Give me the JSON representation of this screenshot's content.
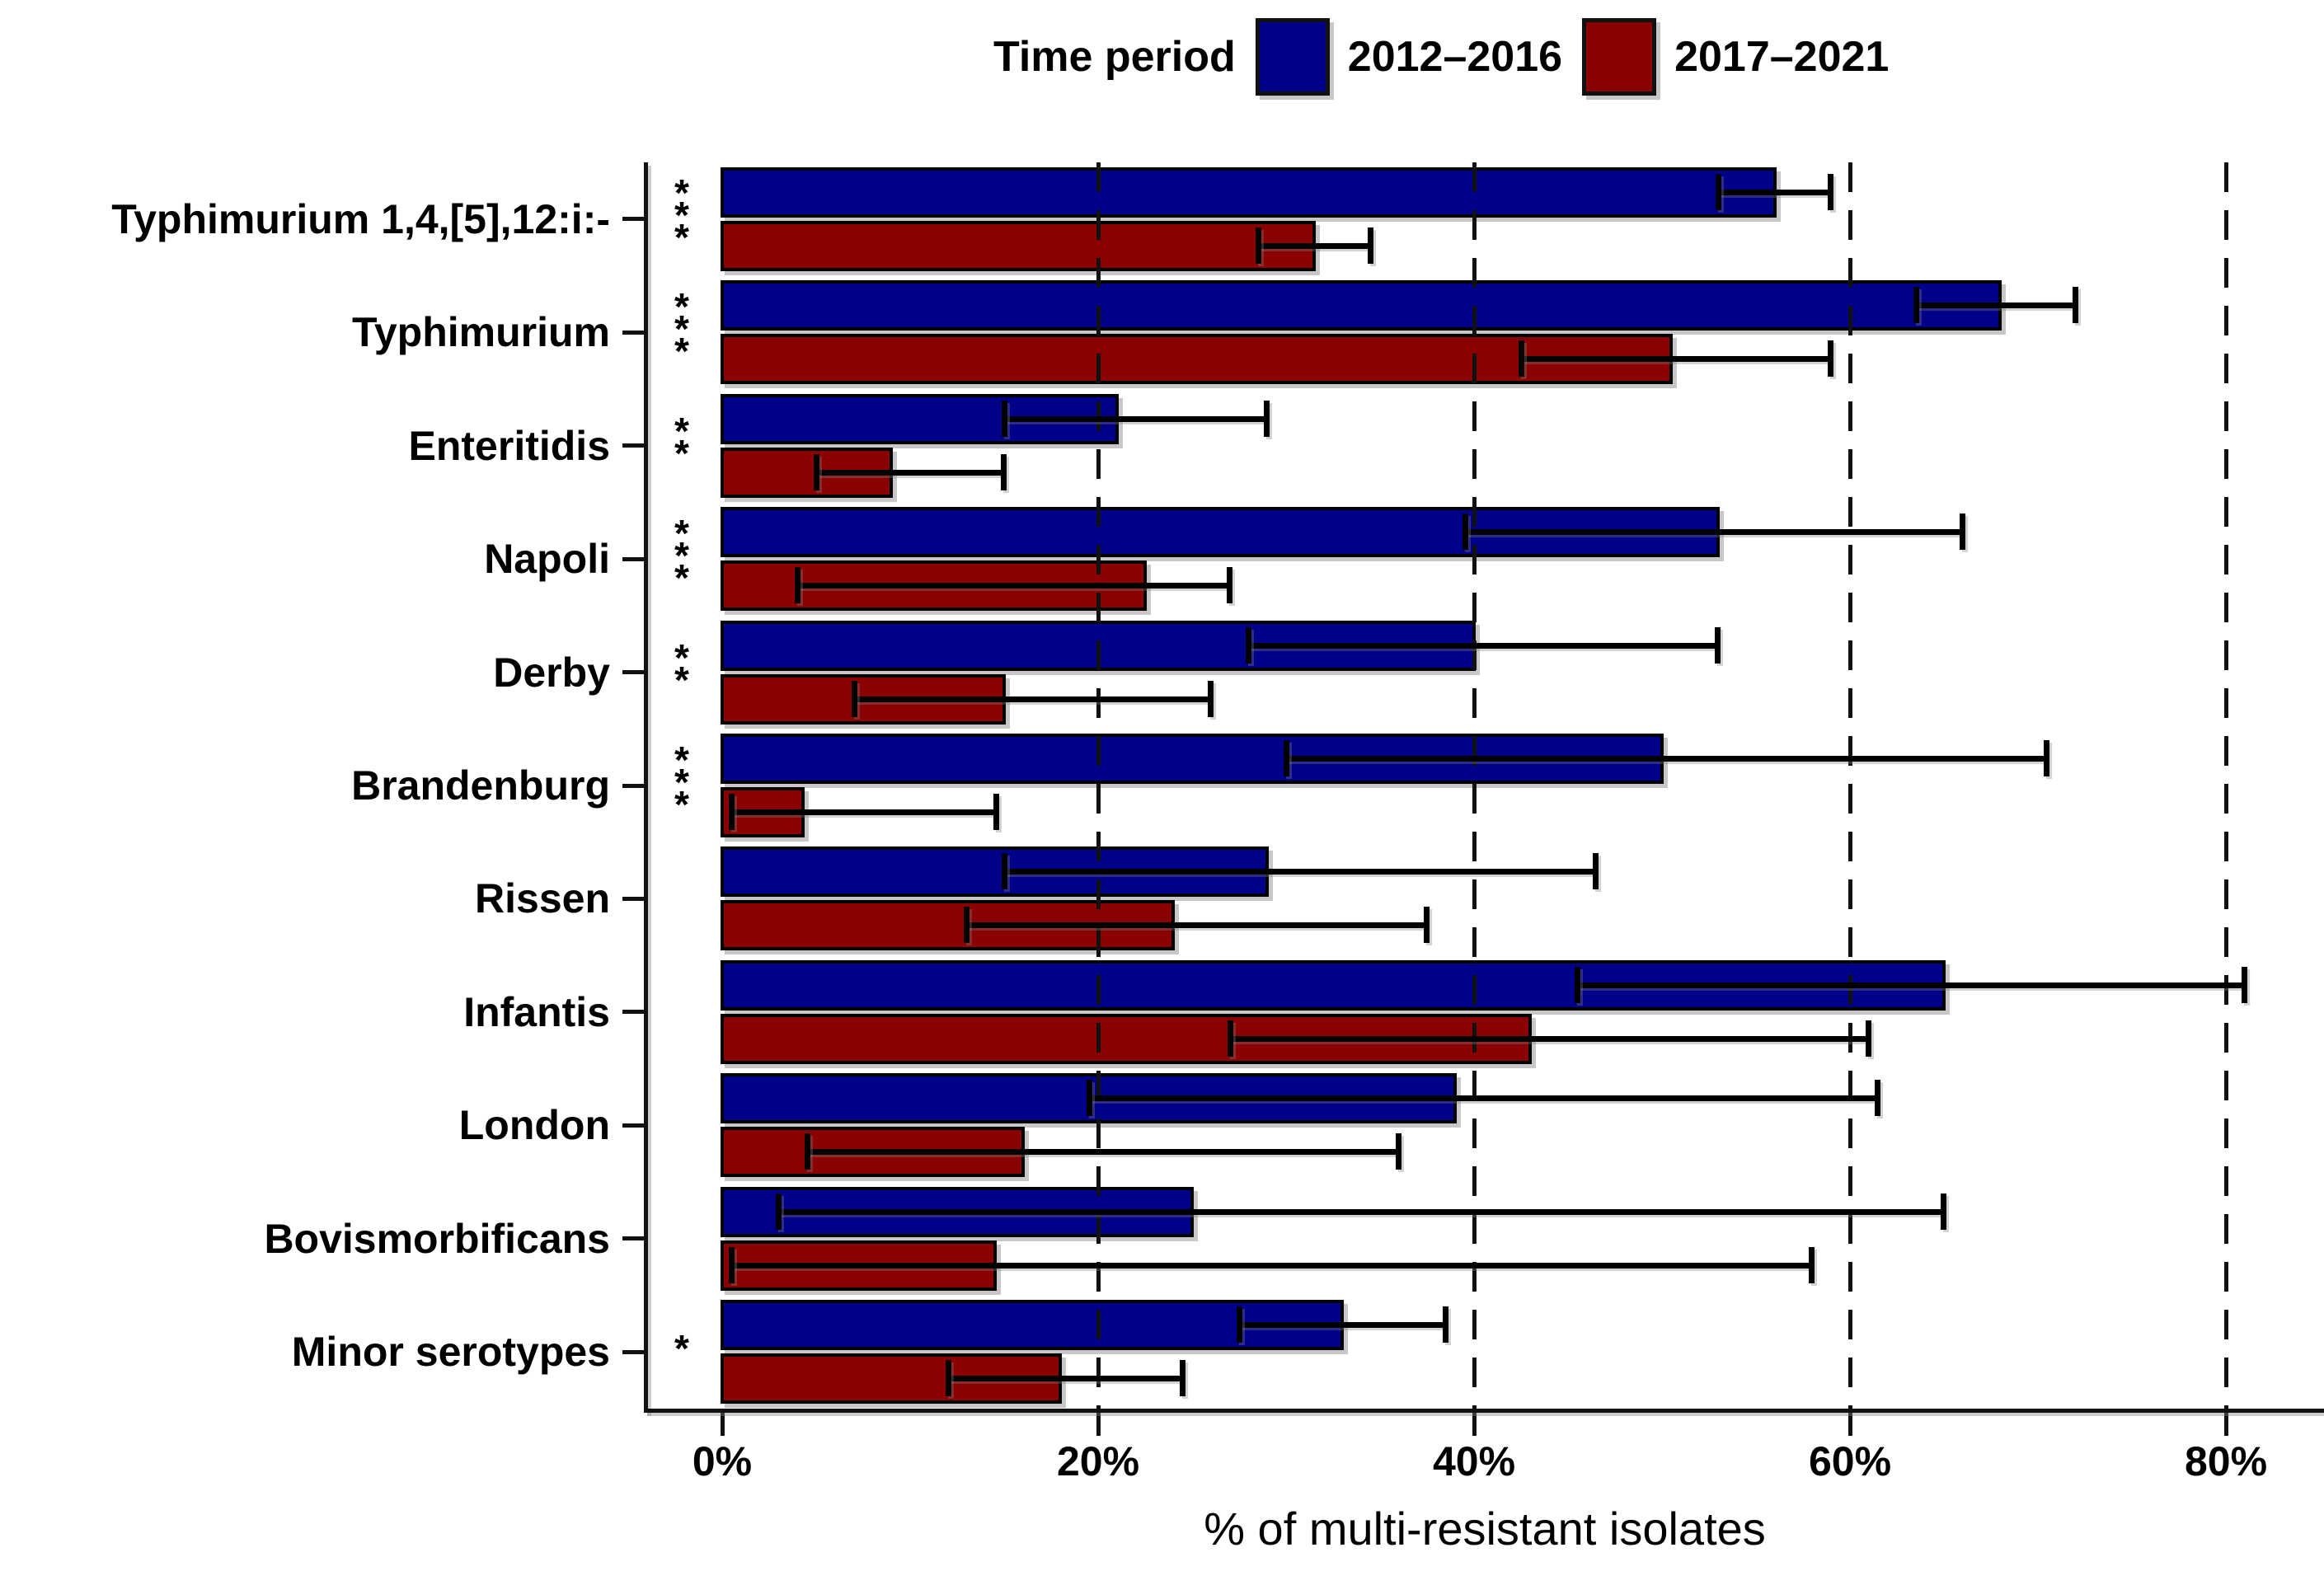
{
  "chart_data": {
    "type": "bar",
    "orientation": "horizontal",
    "title": "",
    "xlabel": "% of multi-resistant isolates",
    "legend_title": "Time period",
    "legend_position": "top",
    "grid": {
      "style": "dashed",
      "positions": [
        20,
        40,
        60,
        80
      ]
    },
    "xlim": [
      -4.2,
      85
    ],
    "x_ticks": [
      {
        "label": "0%",
        "value": 0
      },
      {
        "label": "20%",
        "value": 20
      },
      {
        "label": "40%",
        "value": 40
      },
      {
        "label": "60%",
        "value": 60
      },
      {
        "label": "80%",
        "value": 80
      }
    ],
    "categories": [
      "Typhimurium 1,4,[5],12:i:-",
      "Typhimurium",
      "Enteritidis",
      "Napoli",
      "Derby",
      "Brandenburg",
      "Rissen",
      "Infantis",
      "London",
      "Bovismorbificans",
      "Minor serotypes"
    ],
    "significance": [
      "***",
      "***",
      "**",
      "***",
      "**",
      "***",
      "",
      "",
      "",
      "",
      "*"
    ],
    "series": [
      {
        "name": "2012–2016",
        "color": "#00008B",
        "values": [
          56,
          68,
          21,
          53,
          40,
          50,
          29,
          65,
          39,
          25,
          33
        ],
        "ci_low": [
          53,
          63.5,
          15,
          39.5,
          28,
          30,
          15,
          45.5,
          19.5,
          3,
          27.5
        ],
        "ci_high": [
          59,
          72,
          29,
          66,
          53,
          70.5,
          46.5,
          81,
          61.5,
          65,
          38.5
        ]
      },
      {
        "name": "2017–2021",
        "color": "#8B0000",
        "values": [
          31.5,
          50.5,
          9,
          22.5,
          15,
          4.3,
          24,
          43,
          16,
          14.5,
          18
        ],
        "ci_low": [
          28.5,
          42.5,
          5,
          4,
          7,
          0.5,
          13,
          27,
          4.5,
          0.5,
          12
        ],
        "ci_high": [
          34.5,
          59,
          15,
          27,
          26,
          14.6,
          37.5,
          61,
          36,
          58,
          24.5
        ]
      }
    ]
  }
}
